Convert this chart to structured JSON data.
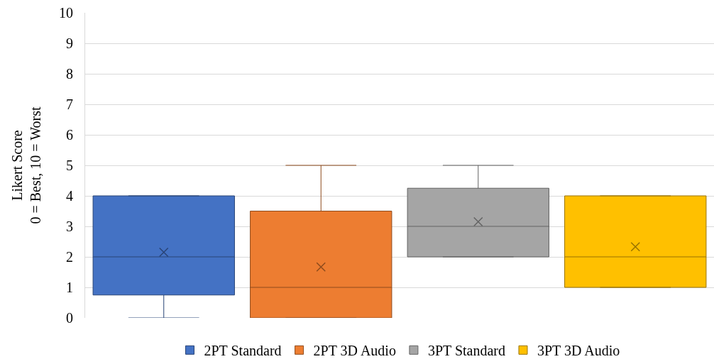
{
  "chart_data": {
    "type": "box",
    "ylabel": "Likert Score\n0 = Best, 10 = Worst",
    "categories": [
      null
    ],
    "series": [
      {
        "name": "2PT Standard",
        "color": "#4472c4",
        "boxes": [
          {
            "low": 0,
            "q1": 0.75,
            "median": 2,
            "q3": 4,
            "high": 4,
            "mean": 2.15
          }
        ]
      },
      {
        "name": "2PT 3D Audio",
        "color": "#ed7d31",
        "boxes": [
          {
            "low": 0,
            "q1": 0,
            "median": 1,
            "q3": 3.5,
            "high": 5,
            "mean": 1.67
          }
        ]
      },
      {
        "name": "3PT Standard",
        "color": "#a5a5a5",
        "boxes": [
          {
            "low": 2,
            "q1": 2,
            "median": 3,
            "q3": 4.25,
            "high": 5,
            "mean": 3.15
          }
        ]
      },
      {
        "name": "3PT 3D Audio",
        "color": "#ffc000",
        "boxes": [
          {
            "low": 1,
            "q1": 1,
            "median": 2,
            "q3": 4,
            "high": 4,
            "mean": 2.33
          }
        ]
      }
    ],
    "ylim": [
      0,
      10
    ],
    "yticks": [
      0,
      1,
      2,
      3,
      4,
      5,
      6,
      7,
      8,
      9,
      10
    ],
    "grid": "y",
    "legend": "bottom"
  }
}
